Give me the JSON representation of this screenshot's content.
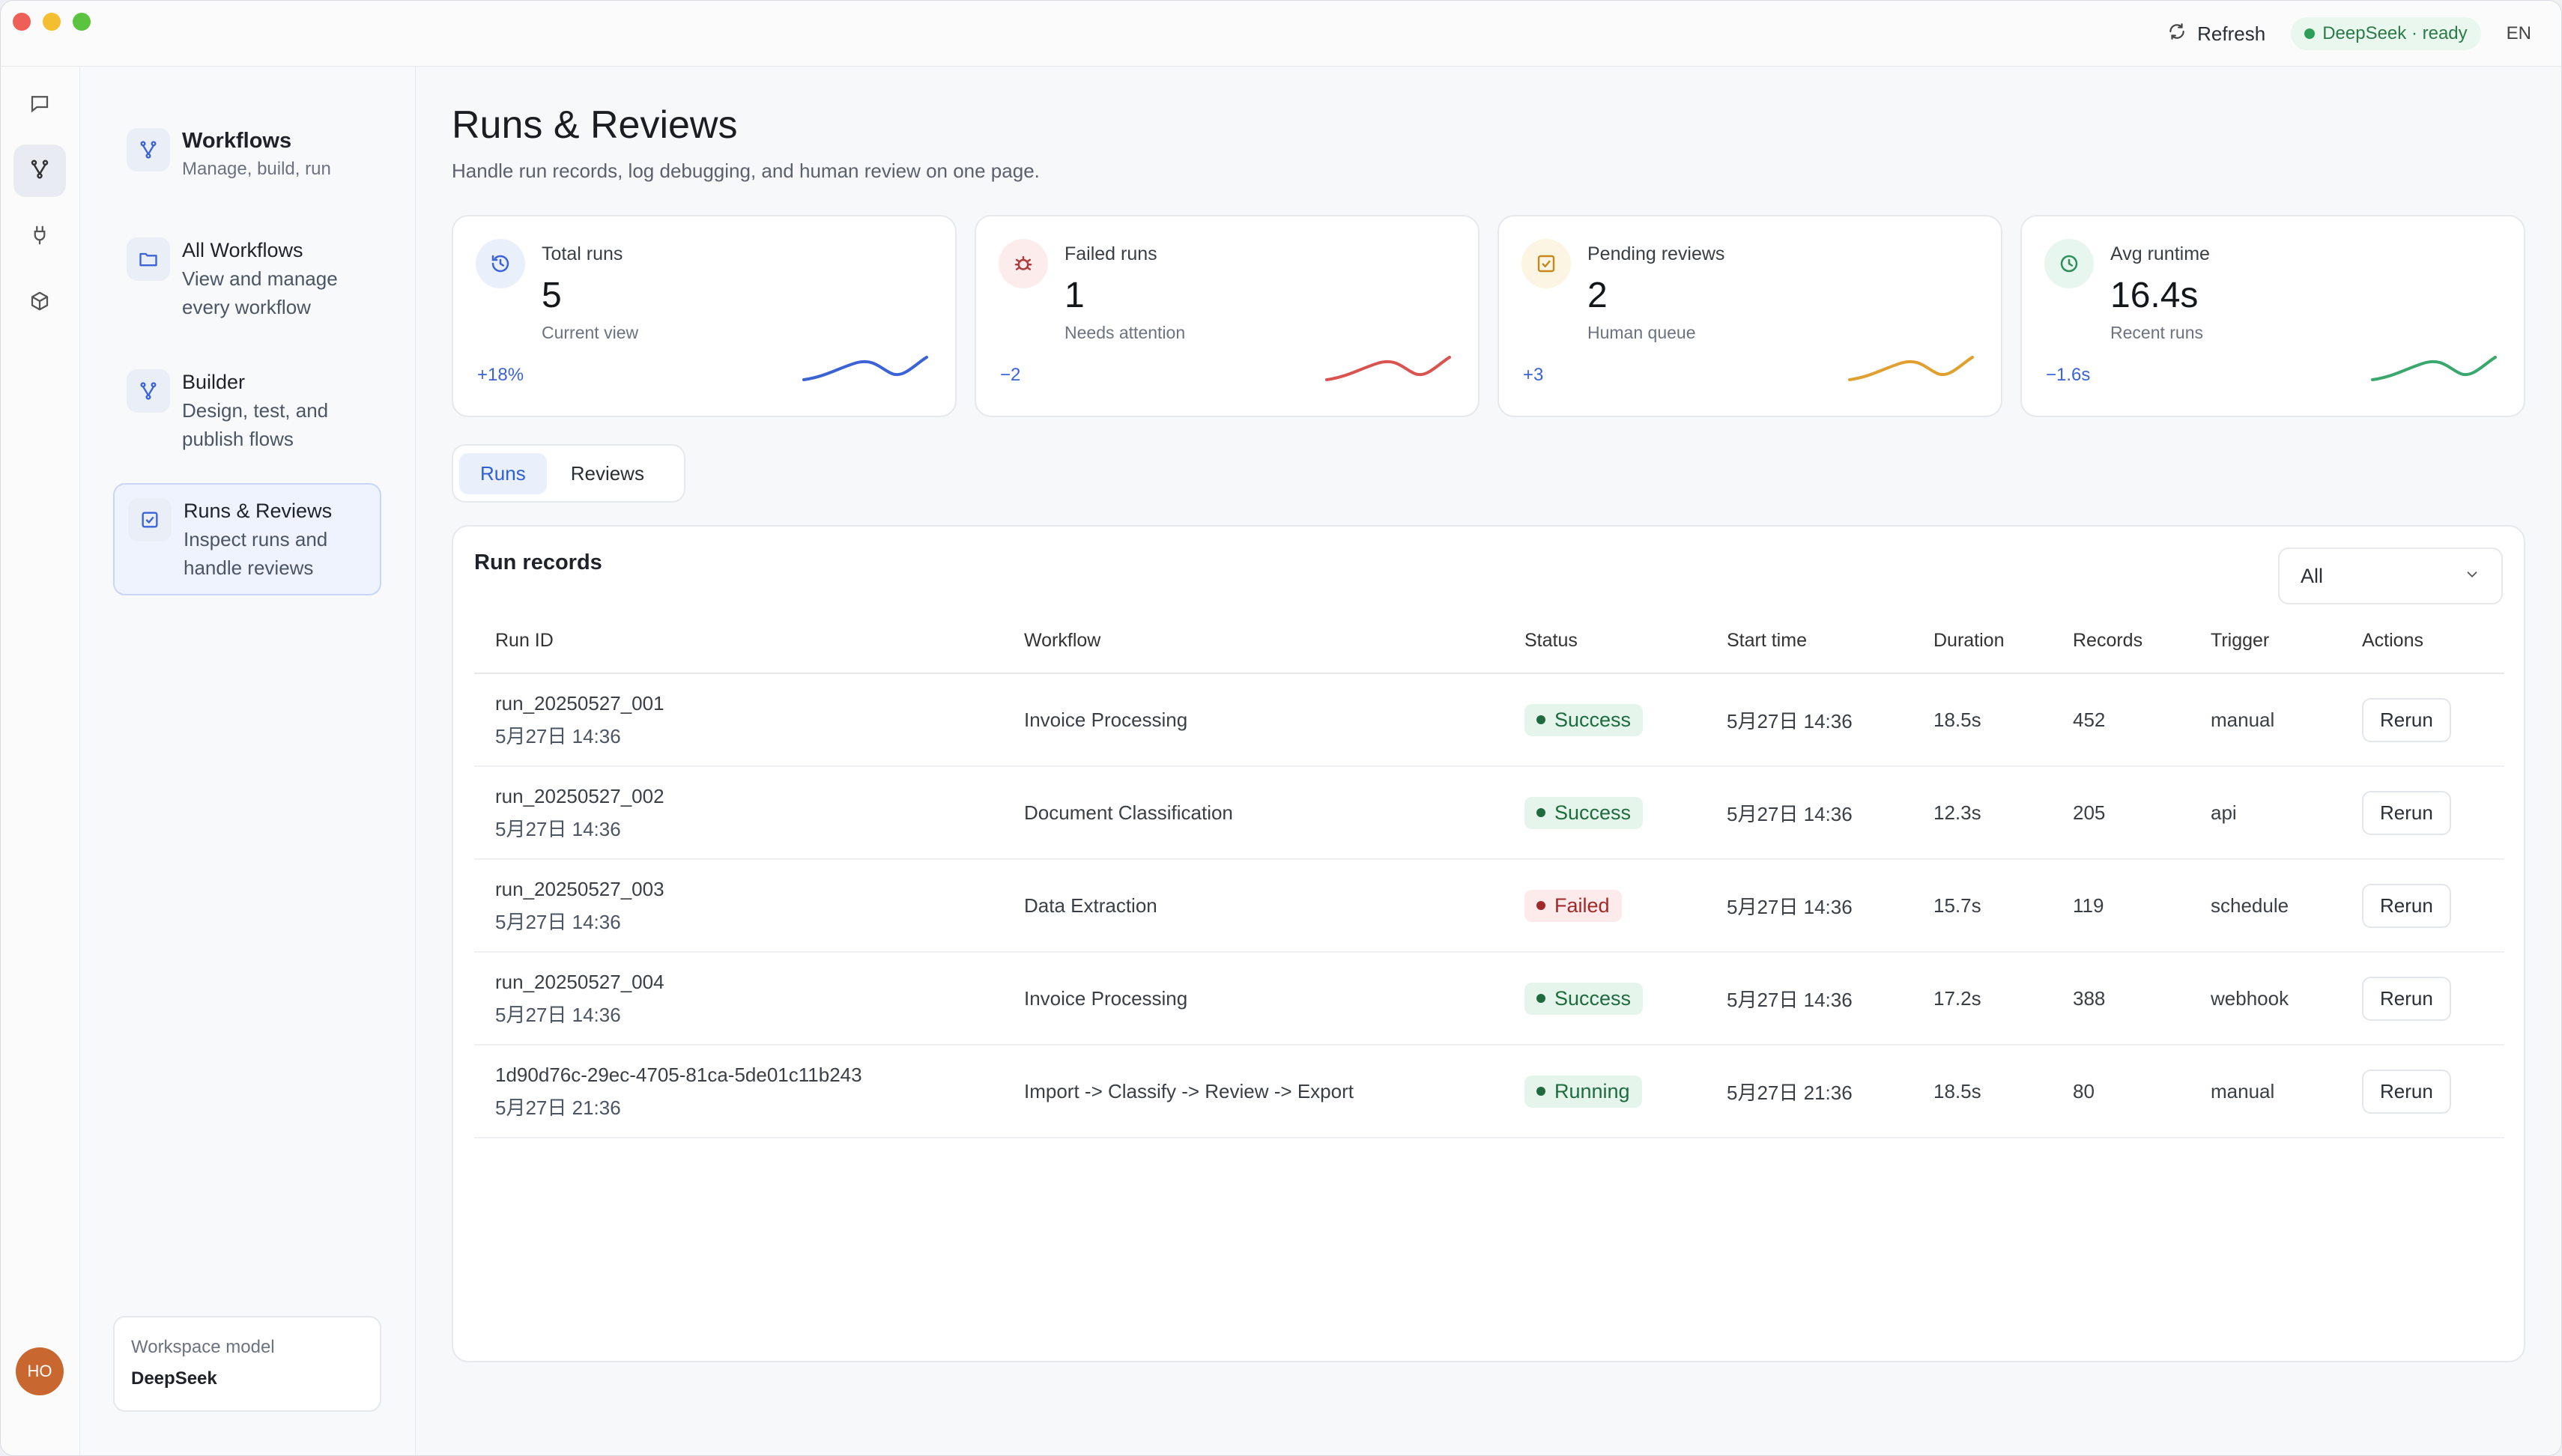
{
  "topbar": {
    "refresh_label": "Refresh",
    "model_status": "DeepSeek · ready",
    "lang": "EN"
  },
  "rail": {
    "avatar": "HO"
  },
  "sidebar": {
    "header": {
      "title": "Workflows",
      "desc": "Manage, build, run"
    },
    "items": [
      {
        "title": "All Workflows",
        "desc": "View and manage every workflow"
      },
      {
        "title": "Builder",
        "desc": "Design, test, and publish flows"
      },
      {
        "title": "Runs & Reviews",
        "desc": "Inspect runs and handle reviews"
      }
    ],
    "workspace_label": "Workspace model",
    "workspace_value": "DeepSeek"
  },
  "page": {
    "title": "Runs & Reviews",
    "subtitle": "Handle run records, log debugging, and human review on one page."
  },
  "stats": [
    {
      "label": "Total runs",
      "value": "5",
      "hint": "Current view",
      "delta": "+18%",
      "color": "#3b63d6"
    },
    {
      "label": "Failed runs",
      "value": "1",
      "hint": "Needs attention",
      "delta": "−2",
      "color": "#d9534f"
    },
    {
      "label": "Pending reviews",
      "value": "2",
      "hint": "Human queue",
      "delta": "+3",
      "color": "#e0a030"
    },
    {
      "label": "Avg runtime",
      "value": "16.4s",
      "hint": "Recent runs",
      "delta": "−1.6s",
      "color": "#3aa76d"
    }
  ],
  "tabs": [
    {
      "label": "Runs"
    },
    {
      "label": "Reviews"
    }
  ],
  "runs_panel": {
    "title": "Run records",
    "filter": "All",
    "columns": [
      "Run ID",
      "Workflow",
      "Status",
      "Start time",
      "Duration",
      "Records",
      "Trigger",
      "Actions"
    ],
    "rows": [
      {
        "id": "run_20250527_001",
        "date": "5月27日 14:36",
        "workflow": "Invoice Processing",
        "status": "Success",
        "start": "5月27日 14:36",
        "duration": "18.5s",
        "records": "452",
        "trigger": "manual",
        "action": "Rerun"
      },
      {
        "id": "run_20250527_002",
        "date": "5月27日 14:36",
        "workflow": "Document Classification",
        "status": "Success",
        "start": "5月27日 14:36",
        "duration": "12.3s",
        "records": "205",
        "trigger": "api",
        "action": "Rerun"
      },
      {
        "id": "run_20250527_003",
        "date": "5月27日 14:36",
        "workflow": "Data Extraction",
        "status": "Failed",
        "start": "5月27日 14:36",
        "duration": "15.7s",
        "records": "119",
        "trigger": "schedule",
        "action": "Rerun"
      },
      {
        "id": "run_20250527_004",
        "date": "5月27日 14:36",
        "workflow": "Invoice Processing",
        "status": "Success",
        "start": "5月27日 14:36",
        "duration": "17.2s",
        "records": "388",
        "trigger": "webhook",
        "action": "Rerun"
      },
      {
        "id": "1d90d76c-29ec-4705-81ca-5de01c11b243",
        "date": "5月27日 21:36",
        "workflow": "Import -> Classify -> Review -> Export",
        "status": "Running",
        "start": "5月27日 21:36",
        "duration": "18.5s",
        "records": "80",
        "trigger": "manual",
        "action": "Rerun"
      }
    ]
  }
}
